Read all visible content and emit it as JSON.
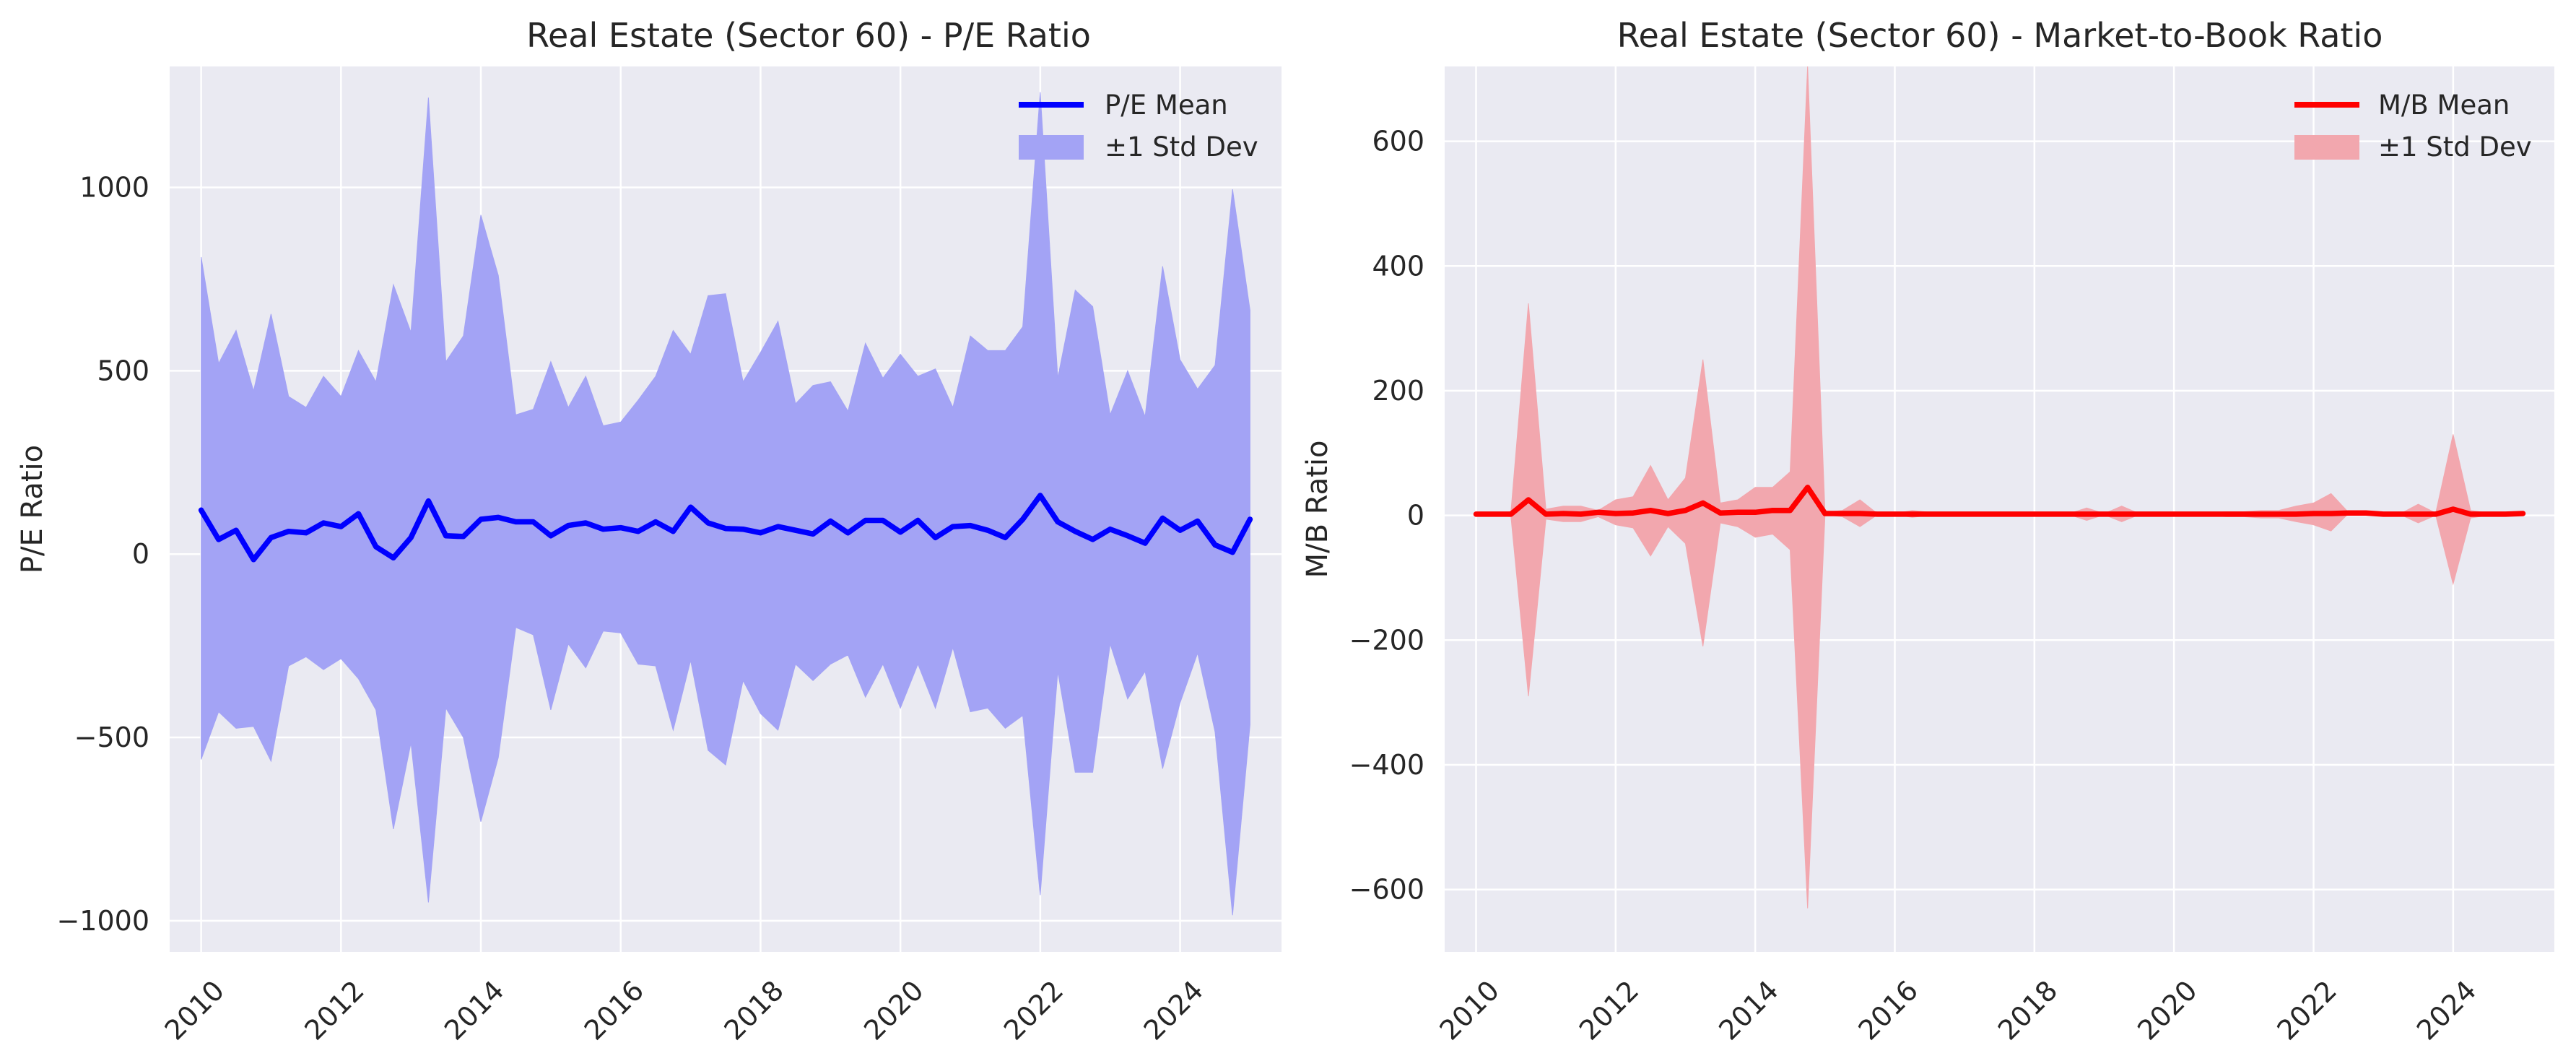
{
  "colors": {
    "panel_bg": "#EAEAF2",
    "grid": "#FFFFFF",
    "pe_line": "#0000FF",
    "pe_band": "#A3A3F5",
    "mb_line": "#FF0000",
    "mb_band": "#F2A7AE"
  },
  "chart_data": [
    {
      "type": "line",
      "title": "Real Estate (Sector 60) - P/E Ratio",
      "xlabel": "",
      "ylabel": "P/E Ratio",
      "xlim": [
        2009.55,
        2025.45
      ],
      "ylim": [
        -1085,
        1330
      ],
      "grid": true,
      "legend_position": "top-right",
      "x_ticks": [
        2010,
        2012,
        2014,
        2016,
        2018,
        2020,
        2022,
        2024
      ],
      "x_tick_labels": [
        "2010",
        "2012",
        "2014",
        "2016",
        "2018",
        "2020",
        "2022",
        "2024"
      ],
      "y_ticks": [
        -1000,
        -500,
        0,
        500,
        1000
      ],
      "y_tick_labels": [
        "−1000",
        "−500",
        "0",
        "500",
        "1000"
      ],
      "x": [
        2010.0,
        2010.25,
        2010.5,
        2010.75,
        2011.0,
        2011.25,
        2011.5,
        2011.75,
        2012.0,
        2012.25,
        2012.5,
        2012.75,
        2013.0,
        2013.25,
        2013.5,
        2013.75,
        2014.0,
        2014.25,
        2014.5,
        2014.75,
        2015.0,
        2015.25,
        2015.5,
        2015.75,
        2016.0,
        2016.25,
        2016.5,
        2016.75,
        2017.0,
        2017.25,
        2017.5,
        2017.75,
        2018.0,
        2018.25,
        2018.5,
        2018.75,
        2019.0,
        2019.25,
        2019.5,
        2019.75,
        2020.0,
        2020.25,
        2020.5,
        2020.75,
        2021.0,
        2021.25,
        2021.5,
        2021.75,
        2022.0,
        2022.25,
        2022.5,
        2022.75,
        2023.0,
        2023.25,
        2023.5,
        2023.75,
        2024.0,
        2024.25,
        2024.5,
        2024.75,
        2025.0
      ],
      "series": [
        {
          "name": "P/E Mean",
          "kind": "line",
          "values": [
            120,
            40,
            65,
            -15,
            45,
            62,
            58,
            85,
            75,
            110,
            20,
            -10,
            45,
            145,
            50,
            48,
            95,
            100,
            88,
            88,
            50,
            78,
            85,
            68,
            72,
            62,
            88,
            62,
            128,
            85,
            70,
            68,
            58,
            75,
            65,
            55,
            90,
            58,
            92,
            92,
            60,
            92,
            45,
            75,
            78,
            65,
            45,
            95,
            160,
            88,
            62,
            40,
            68,
            50,
            30,
            98,
            65,
            90,
            25,
            5,
            95
          ]
        },
        {
          "name": "±1 Std Dev",
          "kind": "band",
          "upper": [
            810,
            520,
            610,
            445,
            655,
            430,
            400,
            485,
            430,
            555,
            470,
            735,
            605,
            1245,
            525,
            595,
            925,
            760,
            380,
            395,
            525,
            400,
            485,
            350,
            360,
            420,
            485,
            610,
            545,
            705,
            710,
            470,
            550,
            635,
            410,
            460,
            470,
            390,
            575,
            480,
            545,
            485,
            505,
            400,
            595,
            555,
            555,
            620,
            1260,
            480,
            720,
            675,
            380,
            500,
            375,
            785,
            530,
            450,
            515,
            995,
            665
          ],
          "lower": [
            -560,
            -430,
            -475,
            -470,
            -565,
            -305,
            -280,
            -315,
            -285,
            -340,
            -425,
            -750,
            -515,
            -950,
            -420,
            -500,
            -730,
            -555,
            -200,
            -220,
            -425,
            -245,
            -310,
            -210,
            -215,
            -300,
            -305,
            -480,
            -290,
            -535,
            -575,
            -345,
            -435,
            -480,
            -300,
            -345,
            -300,
            -275,
            -390,
            -300,
            -420,
            -300,
            -420,
            -255,
            -430,
            -420,
            -475,
            -440,
            -930,
            -320,
            -595,
            -595,
            -245,
            -395,
            -320,
            -585,
            -405,
            -270,
            -485,
            -985,
            -465
          ]
        }
      ]
    },
    {
      "type": "line",
      "title": "Real Estate (Sector 60) - Market-to-Book Ratio",
      "xlabel": "",
      "ylabel": "M/B Ratio",
      "xlim": [
        2009.55,
        2025.45
      ],
      "ylim": [
        -700,
        720
      ],
      "grid": true,
      "legend_position": "top-right",
      "x_ticks": [
        2010,
        2012,
        2014,
        2016,
        2018,
        2020,
        2022,
        2024
      ],
      "x_tick_labels": [
        "2010",
        "2012",
        "2014",
        "2016",
        "2018",
        "2020",
        "2022",
        "2024"
      ],
      "y_ticks": [
        -600,
        -400,
        -200,
        0,
        200,
        400,
        600
      ],
      "y_tick_labels": [
        "−600",
        "−400",
        "−200",
        "0",
        "200",
        "400",
        "600"
      ],
      "x": [
        2010.0,
        2010.25,
        2010.5,
        2010.75,
        2011.0,
        2011.25,
        2011.5,
        2011.75,
        2012.0,
        2012.25,
        2012.5,
        2012.75,
        2013.0,
        2013.25,
        2013.5,
        2013.75,
        2014.0,
        2014.25,
        2014.5,
        2014.75,
        2015.0,
        2015.25,
        2015.5,
        2015.75,
        2016.0,
        2016.25,
        2016.5,
        2016.75,
        2017.0,
        2017.25,
        2017.5,
        2017.75,
        2018.0,
        2018.25,
        2018.5,
        2018.75,
        2019.0,
        2019.25,
        2019.5,
        2019.75,
        2020.0,
        2020.25,
        2020.5,
        2020.75,
        2021.0,
        2021.25,
        2021.5,
        2021.75,
        2022.0,
        2022.25,
        2022.5,
        2022.75,
        2023.0,
        2023.25,
        2023.5,
        2023.75,
        2024.0,
        2024.25,
        2024.5,
        2024.75,
        2025.0
      ],
      "series": [
        {
          "name": "M/B Mean",
          "kind": "line",
          "values": [
            2,
            2,
            2,
            25,
            2,
            3,
            2,
            5,
            3,
            4,
            8,
            3,
            8,
            20,
            4,
            5,
            5,
            8,
            8,
            45,
            3,
            3,
            3,
            2,
            2,
            2,
            2,
            2,
            2,
            2,
            2,
            2,
            2,
            2,
            2,
            2,
            2,
            2,
            2,
            2,
            2,
            2,
            2,
            2,
            2,
            2,
            2,
            2,
            3,
            3,
            4,
            4,
            2,
            2,
            2,
            2,
            10,
            2,
            2,
            2,
            3
          ]
        },
        {
          "name": "±1 Std Dev",
          "kind": "band",
          "upper": [
            4,
            4,
            6,
            340,
            10,
            15,
            15,
            8,
            25,
            30,
            80,
            25,
            60,
            250,
            20,
            25,
            45,
            45,
            70,
            720,
            5,
            8,
            25,
            3,
            3,
            8,
            5,
            3,
            3,
            3,
            3,
            3,
            3,
            3,
            3,
            12,
            3,
            15,
            3,
            3,
            3,
            5,
            4,
            6,
            6,
            8,
            8,
            15,
            20,
            35,
            5,
            4,
            3,
            3,
            18,
            4,
            130,
            8,
            4,
            3,
            6
          ],
          "lower": [
            0,
            0,
            -2,
            -290,
            -6,
            -10,
            -10,
            -2,
            -15,
            -20,
            -65,
            -18,
            -45,
            -210,
            -12,
            -18,
            -35,
            -30,
            -55,
            -630,
            1,
            -2,
            -18,
            1,
            1,
            -3,
            0,
            1,
            1,
            1,
            1,
            1,
            1,
            1,
            1,
            -8,
            1,
            -10,
            1,
            1,
            1,
            -1,
            0,
            -2,
            -2,
            -4,
            -4,
            -10,
            -15,
            -25,
            3,
            2,
            1,
            1,
            -12,
            0,
            -110,
            -4,
            0,
            1,
            0
          ]
        }
      ]
    }
  ]
}
